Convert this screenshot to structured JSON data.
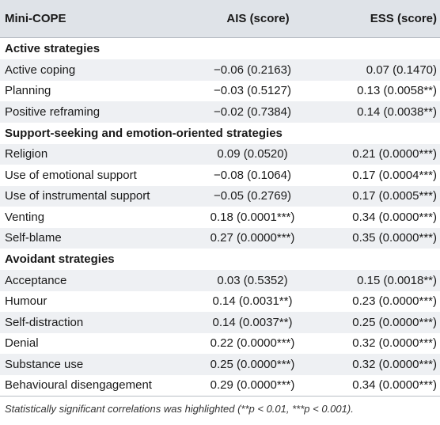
{
  "header": {
    "col1": "Mini-COPE",
    "col2": "AIS (score)",
    "col3": "ESS (score)"
  },
  "sections": [
    {
      "title": "Active strategies",
      "rows": [
        {
          "label": "Active coping",
          "ais": "−0.06 (0.2163)",
          "ess": "0.07 (0.1470)"
        },
        {
          "label": "Planning",
          "ais": "−0.03 (0.5127)",
          "ess": "0.13 (0.0058**)"
        },
        {
          "label": "Positive reframing",
          "ais": "−0.02 (0.7384)",
          "ess": "0.14 (0.0038**)"
        }
      ]
    },
    {
      "title": "Support-seeking and emotion-oriented strategies",
      "rows": [
        {
          "label": "Religion",
          "ais": "0.09 (0.0520)",
          "ess": "0.21 (0.0000***)"
        },
        {
          "label": "Use of emotional support",
          "ais": "−0.08 (0.1064)",
          "ess": "0.17 (0.0004***)"
        },
        {
          "label": "Use of instrumental support",
          "ais": "−0.05 (0.2769)",
          "ess": "0.17 (0.0005***)"
        },
        {
          "label": "Venting",
          "ais": "0.18 (0.0001***)",
          "ess": "0.34 (0.0000***)"
        },
        {
          "label": "Self-blame",
          "ais": "0.27 (0.0000***)",
          "ess": "0.35 (0.0000***)"
        }
      ]
    },
    {
      "title": "Avoidant strategies",
      "rows": [
        {
          "label": "Acceptance",
          "ais": "0.03 (0.5352)",
          "ess": "0.15 (0.0018**)"
        },
        {
          "label": "Humour",
          "ais": "0.14 (0.0031**)",
          "ess": "0.23 (0.0000***)"
        },
        {
          "label": "Self-distraction",
          "ais": "0.14 (0.0037**)",
          "ess": "0.25 (0.0000***)"
        },
        {
          "label": "Denial",
          "ais": "0.22 (0.0000***)",
          "ess": "0.32 (0.0000***)"
        },
        {
          "label": "Substance use",
          "ais": "0.25 (0.0000***)",
          "ess": "0.32 (0.0000***)"
        },
        {
          "label": "Behavioural disengagement",
          "ais": "0.29 (0.0000***)",
          "ess": "0.34 (0.0000***)"
        }
      ]
    }
  ],
  "footnote": "Statistically significant correlations was highlighted (**p < 0.01, ***p < 0.001)."
}
